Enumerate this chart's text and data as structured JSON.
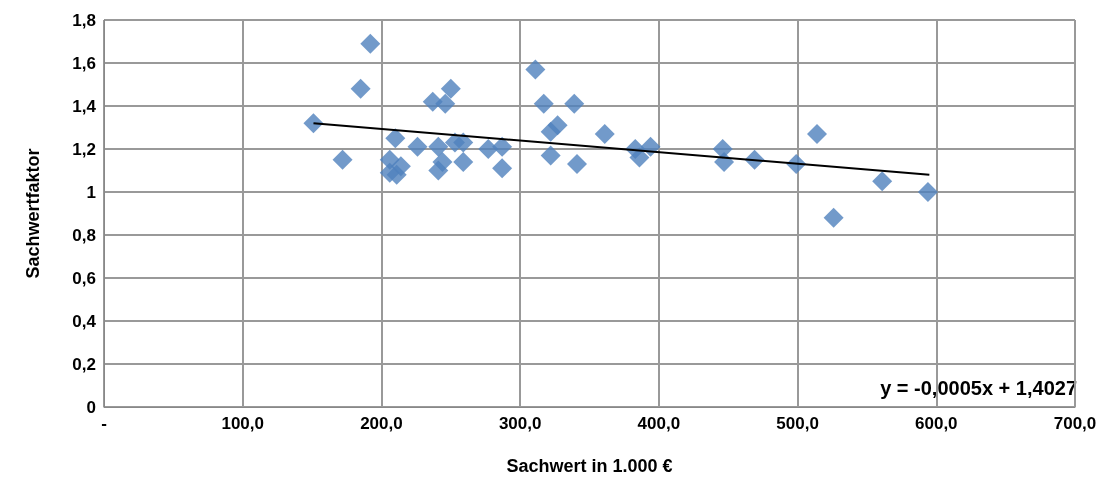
{
  "chart_data": {
    "type": "scatter",
    "xlabel": "Sachwert in 1.000 €",
    "ylabel": "Sachwertfaktor",
    "marker": "diamond",
    "grid": true,
    "xlim": [
      0,
      700
    ],
    "xticks": [
      {
        "value": 0,
        "label": "-"
      },
      {
        "value": 100,
        "label": "100,0"
      },
      {
        "value": 200,
        "label": "200,0"
      },
      {
        "value": 300,
        "label": "300,0"
      },
      {
        "value": 400,
        "label": "400,0"
      },
      {
        "value": 500,
        "label": "500,0"
      },
      {
        "value": 600,
        "label": "600,0"
      },
      {
        "value": 700,
        "label": "700,0"
      }
    ],
    "ylim": [
      0,
      1.8
    ],
    "yticks": [
      0,
      {
        "value": 0.2,
        "label": "0,2"
      },
      {
        "value": 0.4,
        "label": "0,4"
      },
      {
        "value": 0.6,
        "label": "0,6"
      },
      {
        "value": 0.8,
        "label": "0,8"
      },
      1,
      {
        "value": 1.2,
        "label": "1,2"
      },
      {
        "value": 1.4,
        "label": "1,4"
      },
      {
        "value": 1.6,
        "label": "1,6"
      },
      {
        "value": 1.8,
        "label": "1,8"
      }
    ],
    "annotations": [
      "y = -0,0005x + 1,4027"
    ],
    "series": [
      {
        "color": "#4f81bd",
        "x": [
          151,
          172,
          185,
          192,
          206,
          206,
          210,
          211,
          214,
          226,
          237,
          241,
          241,
          246,
          244,
          250,
          253,
          259,
          259,
          277,
          287,
          287,
          311,
          317,
          322,
          322,
          327,
          339,
          341,
          361,
          383,
          386,
          394,
          446,
          447,
          469,
          499,
          514,
          526,
          561,
          594
        ],
        "values": [
          1.32,
          1.15,
          1.48,
          1.69,
          1.15,
          1.09,
          1.25,
          1.08,
          1.12,
          1.21,
          1.42,
          1.21,
          1.1,
          1.41,
          1.14,
          1.48,
          1.23,
          1.23,
          1.14,
          1.2,
          1.21,
          1.11,
          1.57,
          1.41,
          1.28,
          1.17,
          1.31,
          1.41,
          1.13,
          1.27,
          1.2,
          1.16,
          1.21,
          1.2,
          1.14,
          1.15,
          1.13,
          1.27,
          0.88,
          1.05,
          1.0
        ]
      },
      {
        "type": "line",
        "marker": "none",
        "color": "#000000",
        "x": [
          151,
          595
        ],
        "values": [
          1.32,
          1.08
        ]
      }
    ]
  }
}
